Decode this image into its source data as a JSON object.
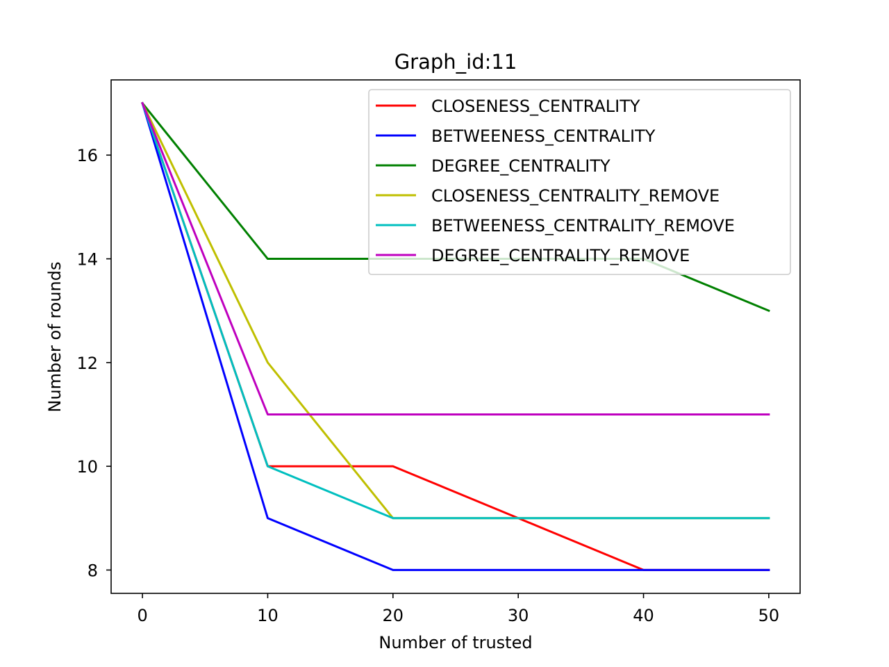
{
  "chart_data": {
    "type": "line",
    "title": "Graph_id:11",
    "xlabel": "Number of trusted",
    "ylabel": "Number of rounds",
    "x": [
      0,
      10,
      20,
      30,
      40,
      50
    ],
    "xlim": [
      -2.5,
      52.5
    ],
    "ylim": [
      7.55,
      17.45
    ],
    "xticks": [
      0,
      10,
      20,
      30,
      40,
      50
    ],
    "yticks": [
      8,
      10,
      12,
      14,
      16
    ],
    "legend_position": "top-right",
    "grid": false,
    "series": [
      {
        "name": "CLOSENESS_CENTRALITY",
        "color": "#ff0000",
        "values": [
          17,
          10,
          10,
          9,
          8,
          8
        ]
      },
      {
        "name": "BETWEENESS_CENTRALITY",
        "color": "#0000ff",
        "values": [
          17,
          9,
          8,
          8,
          8,
          8
        ]
      },
      {
        "name": "DEGREE_CENTRALITY",
        "color": "#008000",
        "values": [
          17,
          14,
          14,
          14,
          14,
          13
        ]
      },
      {
        "name": "CLOSENESS_CENTRALITY_REMOVE",
        "color": "#bfbf00",
        "values": [
          17,
          12,
          9,
          9,
          9,
          9
        ]
      },
      {
        "name": "BETWEENESS_CENTRALITY_REMOVE",
        "color": "#00bfbf",
        "values": [
          17,
          10,
          9,
          9,
          9,
          9
        ]
      },
      {
        "name": "DEGREE_CENTRALITY_REMOVE",
        "color": "#bf00bf",
        "values": [
          17,
          11,
          11,
          11,
          11,
          11
        ]
      }
    ]
  }
}
